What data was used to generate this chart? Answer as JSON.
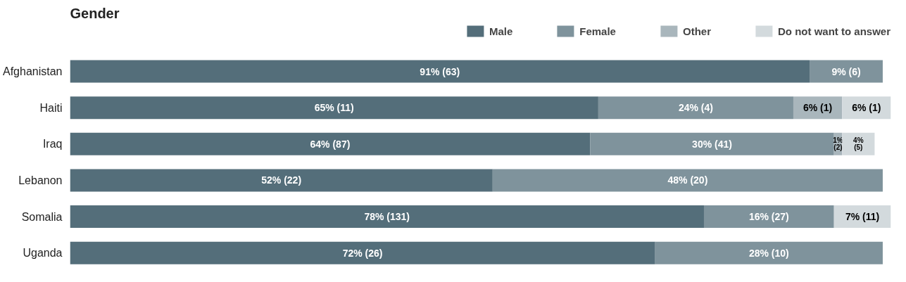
{
  "chart_data": {
    "type": "bar",
    "orientation": "horizontal",
    "stacked": true,
    "title": "Gender",
    "legend": "top",
    "grid": false,
    "categories": [
      "Afghanistan",
      "Haiti",
      "Iraq",
      "Lebanon",
      "Somalia",
      "Uganda"
    ],
    "series": [
      {
        "name": "Male",
        "color": "#546e7a",
        "values": [
          91,
          65,
          64,
          52,
          78,
          72
        ],
        "value_labels": [
          "91% (63)",
          "65% (11)",
          "64% (87)",
          "52% (22)",
          "78% (131)",
          "72% (26)"
        ]
      },
      {
        "name": "Female",
        "color": "#7f939c",
        "values": [
          9,
          24,
          30,
          48,
          16,
          28
        ],
        "value_labels": [
          "9% (6)",
          "24% (4)",
          "30% (41)",
          "48% (20)",
          "16% (27)",
          "28% (10)"
        ]
      },
      {
        "name": "Other",
        "color": "#a9b6bc",
        "values": [
          null,
          6,
          1,
          null,
          null,
          null
        ],
        "value_labels": [
          null,
          "6% (1)",
          "1% (2)",
          null,
          null,
          null
        ]
      },
      {
        "name": "Do not want to answer",
        "color": "#d3dadd",
        "values": [
          null,
          6,
          4,
          null,
          7,
          null
        ],
        "value_labels": [
          null,
          "6% (1)",
          "4% (5)",
          null,
          "7% (11)",
          null
        ]
      }
    ]
  }
}
